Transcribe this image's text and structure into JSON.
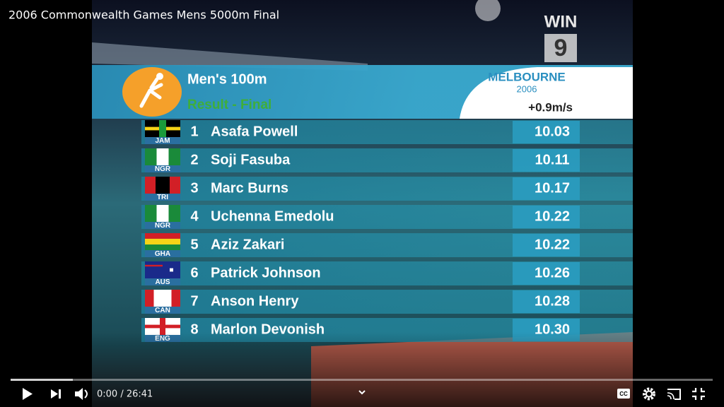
{
  "video_title": "2006 Commonwealth Games Mens 5000m Final",
  "channel_logo": {
    "name": "WIN",
    "number": "9"
  },
  "graphic": {
    "event": "Men's 100m",
    "stage": "Result - Final",
    "games_logo": {
      "city": "MELBOURNE",
      "year": "2006"
    },
    "wind": "+0.9m/s",
    "results": [
      {
        "rank": "1",
        "country": "JAM",
        "name": "Asafa Powell",
        "time": "10.03"
      },
      {
        "rank": "2",
        "country": "NGR",
        "name": "Soji Fasuba",
        "time": "10.11"
      },
      {
        "rank": "3",
        "country": "TRI",
        "name": "Marc Burns",
        "time": "10.17"
      },
      {
        "rank": "4",
        "country": "NGR",
        "name": "Uchenna Emedolu",
        "time": "10.22"
      },
      {
        "rank": "5",
        "country": "GHA",
        "name": "Aziz Zakari",
        "time": "10.22"
      },
      {
        "rank": "6",
        "country": "AUS",
        "name": "Patrick Johnson",
        "time": "10.26"
      },
      {
        "rank": "7",
        "country": "CAN",
        "name": "Anson Henry",
        "time": "10.28"
      },
      {
        "rank": "8",
        "country": "ENG",
        "name": "Marlon Devonish",
        "time": "10.30"
      }
    ]
  },
  "player": {
    "time": "0:00 / 26:41"
  }
}
